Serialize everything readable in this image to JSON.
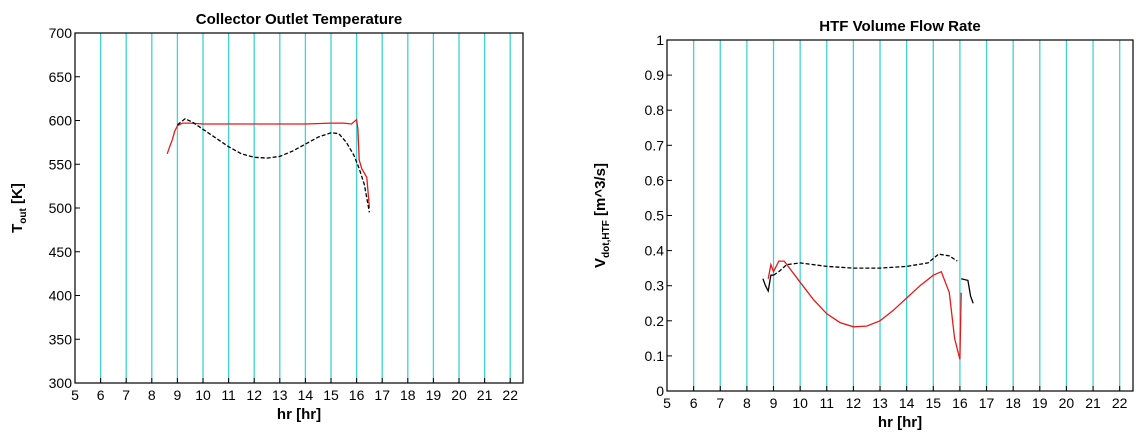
{
  "chart_data": [
    {
      "type": "line",
      "title": "Collector Outlet Temperature",
      "xlabel": "hr  [hr]",
      "ylabel_main": "T",
      "ylabel_sub": "out",
      "ylabel_unit": "  [K]",
      "xlim": [
        5,
        22.5
      ],
      "ylim": [
        300,
        700
      ],
      "xticks": [
        5,
        6,
        7,
        8,
        9,
        10,
        11,
        12,
        13,
        14,
        15,
        16,
        17,
        18,
        19,
        20,
        21,
        22
      ],
      "yticks": [
        300,
        350,
        400,
        450,
        500,
        550,
        600,
        650,
        700
      ],
      "vgrid": [
        6,
        7,
        8,
        9,
        10,
        11,
        12,
        13,
        14,
        15,
        16,
        17,
        18,
        19,
        20,
        21,
        22
      ],
      "grid_color": "#3fd3d3",
      "series": [
        {
          "color": "#e41a1a",
          "dash": "solid",
          "points": [
            [
              8.6,
              562
            ],
            [
              8.7,
              570
            ],
            [
              8.8,
              578
            ],
            [
              8.9,
              588
            ],
            [
              9.0,
              594
            ],
            [
              9.2,
              597
            ],
            [
              9.5,
              597
            ],
            [
              10,
              596
            ],
            [
              11,
              596
            ],
            [
              12,
              596
            ],
            [
              13,
              596
            ],
            [
              14,
              596
            ],
            [
              15,
              597
            ],
            [
              15.5,
              597
            ],
            [
              15.8,
              596
            ],
            [
              16.0,
              601
            ],
            [
              16.05,
              590
            ],
            [
              16.1,
              555
            ],
            [
              16.2,
              545
            ],
            [
              16.3,
              540
            ],
            [
              16.4,
              535
            ],
            [
              16.5,
              500
            ]
          ]
        },
        {
          "color": "#000000",
          "dash": "dashed",
          "points": [
            [
              9.0,
              595
            ],
            [
              9.3,
              602
            ],
            [
              9.6,
              598
            ],
            [
              10,
              590
            ],
            [
              10.5,
              580
            ],
            [
              11,
              570
            ],
            [
              11.5,
              562
            ],
            [
              12,
              558
            ],
            [
              12.5,
              557
            ],
            [
              13,
              559
            ],
            [
              13.5,
              565
            ],
            [
              14,
              573
            ],
            [
              14.5,
              581
            ],
            [
              15,
              586
            ],
            [
              15.3,
              585
            ],
            [
              15.6,
              575
            ],
            [
              15.9,
              560
            ],
            [
              16.1,
              545
            ],
            [
              16.3,
              527
            ],
            [
              16.5,
              495
            ]
          ]
        }
      ]
    },
    {
      "type": "line",
      "title": "HTF Volume Flow Rate",
      "xlabel": "hr  [hr]",
      "ylabel_main": "V",
      "ylabel_sub": "dot,HTF",
      "ylabel_unit": "  [m^3/s]",
      "xlim": [
        5,
        22.5
      ],
      "ylim": [
        0,
        1
      ],
      "xticks": [
        5,
        6,
        7,
        8,
        9,
        10,
        11,
        12,
        13,
        14,
        15,
        16,
        17,
        18,
        19,
        20,
        21,
        22
      ],
      "yticks": [
        0,
        0.1,
        0.2,
        0.3,
        0.4,
        0.5,
        0.6,
        0.7,
        0.8,
        0.9,
        1
      ],
      "vgrid": [
        6,
        7,
        8,
        9,
        10,
        11,
        12,
        13,
        14,
        15,
        16,
        17,
        18,
        19,
        20,
        21,
        22
      ],
      "grid_color": "#3fd3d3",
      "series": [
        {
          "color": "#e41a1a",
          "dash": "solid",
          "points": [
            [
              8.8,
              0.32
            ],
            [
              8.9,
              0.36
            ],
            [
              9.0,
              0.34
            ],
            [
              9.2,
              0.37
            ],
            [
              9.4,
              0.37
            ],
            [
              9.6,
              0.35
            ],
            [
              10,
              0.31
            ],
            [
              10.5,
              0.26
            ],
            [
              11,
              0.22
            ],
            [
              11.5,
              0.195
            ],
            [
              12,
              0.183
            ],
            [
              12.5,
              0.185
            ],
            [
              13,
              0.2
            ],
            [
              13.5,
              0.23
            ],
            [
              14,
              0.265
            ],
            [
              14.5,
              0.3
            ],
            [
              15,
              0.33
            ],
            [
              15.3,
              0.34
            ],
            [
              15.6,
              0.28
            ],
            [
              15.8,
              0.15
            ],
            [
              16.0,
              0.09
            ],
            [
              16.05,
              0.28
            ]
          ]
        },
        {
          "color": "#000000",
          "dash": "dashed",
          "points": [
            [
              9.0,
              0.33
            ],
            [
              9.2,
              0.34
            ],
            [
              9.5,
              0.36
            ],
            [
              10,
              0.365
            ],
            [
              11,
              0.355
            ],
            [
              12,
              0.35
            ],
            [
              13,
              0.35
            ],
            [
              14,
              0.355
            ],
            [
              14.8,
              0.365
            ],
            [
              15.2,
              0.39
            ],
            [
              15.6,
              0.385
            ],
            [
              15.9,
              0.37
            ]
          ]
        },
        {
          "color": "#000000",
          "dash": "solid",
          "points": [
            [
              8.6,
              0.32
            ],
            [
              8.7,
              0.3
            ],
            [
              8.8,
              0.285
            ],
            [
              8.9,
              0.33
            ],
            [
              9.0,
              0.33
            ]
          ]
        },
        {
          "color": "#000000",
          "dash": "solid",
          "points": [
            [
              16.05,
              0.32
            ],
            [
              16.3,
              0.315
            ],
            [
              16.4,
              0.27
            ],
            [
              16.5,
              0.25
            ]
          ]
        }
      ]
    }
  ]
}
